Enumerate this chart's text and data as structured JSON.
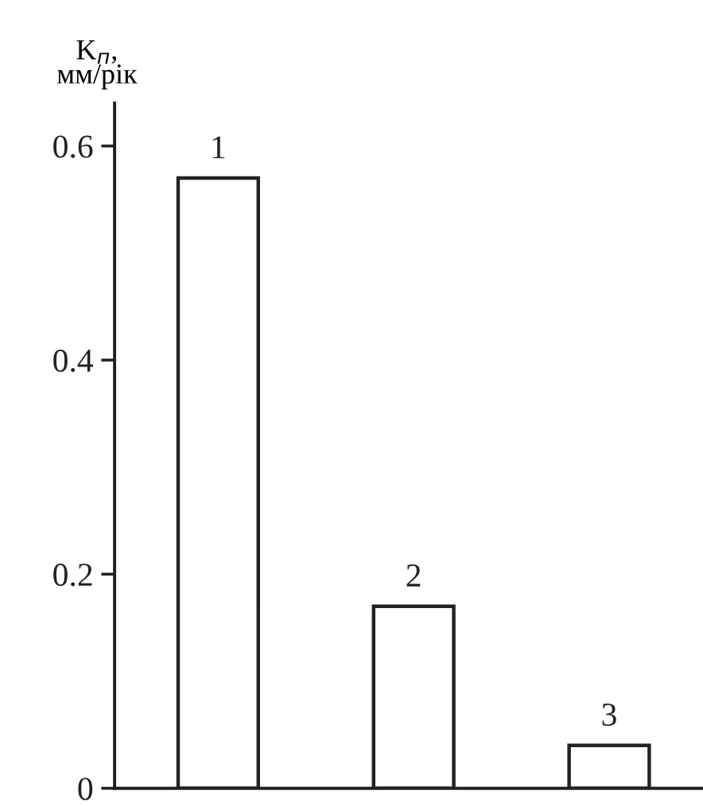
{
  "chart_data": {
    "type": "bar",
    "ylabel": "K$_{п}$,\nмм/рік",
    "categories": [
      "1",
      "2",
      "3"
    ],
    "values": [
      0.57,
      0.17,
      0.04
    ],
    "color": "#ffffff",
    "ylim": [
      0,
      0.64
    ],
    "yticks": [
      0,
      0.2,
      0.4,
      0.6
    ],
    "grid": false
  }
}
